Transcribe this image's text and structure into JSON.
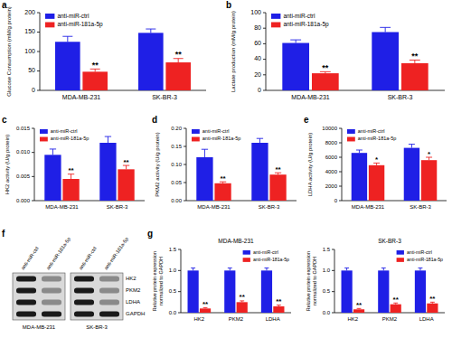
{
  "chart_data": [
    {
      "type": "bar",
      "panel_label": "a",
      "y_label": "Glucose Consumption (mM/g protein)",
      "categories": [
        "MDA-MB-231",
        "SK-BR-3"
      ],
      "series": [
        {
          "name": "anti-miR-ctrl",
          "color": "#1f1fe6",
          "values": [
            125,
            148
          ],
          "errors": [
            14,
            10
          ]
        },
        {
          "name": "anti-miR-181a-5p",
          "color": "#ee2222",
          "values": [
            48,
            72
          ],
          "errors": [
            7,
            10
          ],
          "annotations": [
            "**",
            "**"
          ]
        }
      ],
      "ylim": [
        0,
        200
      ],
      "yticks": [
        0,
        50,
        100,
        150,
        200
      ],
      "legend": "upper left"
    },
    {
      "type": "bar",
      "panel_label": "b",
      "y_label": "Lactate production (mM/g protein)",
      "categories": [
        "MDA-MB-231",
        "SK-BR-3"
      ],
      "series": [
        {
          "name": "anti-miR-ctrl",
          "color": "#1f1fe6",
          "values": [
            61,
            75
          ],
          "errors": [
            4,
            6
          ]
        },
        {
          "name": "anti-miR-181a-5p",
          "color": "#ee2222",
          "values": [
            22,
            35
          ],
          "errors": [
            2,
            4
          ],
          "annotations": [
            "**",
            "**"
          ]
        }
      ],
      "ylim": [
        0,
        100
      ],
      "yticks": [
        0,
        20,
        40,
        60,
        80,
        100
      ],
      "legend": "upper left"
    },
    {
      "type": "bar",
      "panel_label": "c",
      "y_label": "HK2 activity (U/g protein)",
      "categories": [
        "MDA-MB-231",
        "SK-BR-3"
      ],
      "series": [
        {
          "name": "anti-miR-ctrl",
          "color": "#1f1fe6",
          "values": [
            0.0095,
            0.012
          ],
          "errors": [
            0.0012,
            0.0013
          ]
        },
        {
          "name": "anti-miR-181a-5p",
          "color": "#ee2222",
          "values": [
            0.0045,
            0.0065
          ],
          "errors": [
            0.001,
            0.0008
          ],
          "annotations": [
            "**",
            "**"
          ]
        }
      ],
      "ylim": [
        0,
        0.015
      ],
      "yticks": [
        {
          "value": 0,
          "label": "0.000"
        },
        0.005,
        {
          "value": 0.01,
          "label": "0.010"
        },
        0.015
      ],
      "legend": "upper left"
    },
    {
      "type": "bar",
      "panel_label": "d",
      "y_label": "PKM2 activity (U/g protein)",
      "categories": [
        "MDA-MB-231",
        "SK-BR-3"
      ],
      "series": [
        {
          "name": "anti-miR-ctrl",
          "color": "#1f1fe6",
          "values": [
            0.12,
            0.16
          ],
          "errors": [
            0.022,
            0.012
          ]
        },
        {
          "name": "anti-miR-181a-5p",
          "color": "#ee2222",
          "values": [
            0.048,
            0.072
          ],
          "errors": [
            0.004,
            0.005
          ],
          "annotations": [
            "**",
            "**"
          ]
        }
      ],
      "ylim": [
        0,
        0.2
      ],
      "yticks": [
        {
          "value": 0,
          "label": "0.00"
        },
        0.05,
        {
          "value": 0.1,
          "label": "0.10"
        },
        0.15,
        {
          "value": 0.2,
          "label": "0.20"
        }
      ],
      "legend": "upper left"
    },
    {
      "type": "bar",
      "panel_label": "e",
      "y_label": "LDHA activity (U/g protein)",
      "categories": [
        "MDA-MB-231",
        "SK-BR-3"
      ],
      "series": [
        {
          "name": "anti-miR-ctrl",
          "color": "#1f1fe6",
          "values": [
            6600,
            7300
          ],
          "errors": [
            400,
            500
          ]
        },
        {
          "name": "anti-miR-181a-5p",
          "color": "#ee2222",
          "values": [
            4900,
            5600
          ],
          "errors": [
            300,
            400
          ],
          "annotations": [
            "*",
            "*"
          ]
        }
      ],
      "ylim": [
        0,
        10000
      ],
      "yticks": [
        0,
        2000,
        4000,
        6000,
        8000,
        10000
      ],
      "legend": "upper left"
    },
    {
      "type": "bar",
      "panel_label": "g",
      "title": "MDA-MB-231",
      "y_label": [
        "Relative protein expression",
        "normalized to GAPDH"
      ],
      "categories": [
        "HK2",
        "PKM2",
        "LDHA"
      ],
      "series": [
        {
          "name": "anti-miR-ctrl",
          "color": "#1f1fe6",
          "values": [
            1,
            1,
            1
          ],
          "errors": [
            0.06,
            0.06,
            0.06
          ]
        },
        {
          "name": "anti-miR-181a-5p",
          "color": "#ee2222",
          "values": [
            0.1,
            0.25,
            0.15
          ],
          "errors": [
            0.02,
            0.03,
            0.03
          ],
          "annotations": [
            "**",
            "**",
            "**"
          ]
        }
      ],
      "ylim": [
        0,
        1.5
      ],
      "yticks": [
        {
          "value": 0,
          "label": "0.0"
        },
        0.5,
        {
          "value": 1,
          "label": "1.0"
        },
        1.5
      ],
      "legend": "upper right"
    },
    {
      "type": "bar",
      "title": "SK-BR-3",
      "y_label": [
        "Relative protein expression",
        "normalized to GAPDH"
      ],
      "categories": [
        "HK2",
        "PKM2",
        "LDHA"
      ],
      "series": [
        {
          "name": "anti-miR-ctrl",
          "color": "#1f1fe6",
          "values": [
            1,
            1,
            1
          ],
          "errors": [
            0.06,
            0.06,
            0.06
          ]
        },
        {
          "name": "anti-miR-181a-5p",
          "color": "#ee2222",
          "values": [
            0.08,
            0.2,
            0.22
          ],
          "errors": [
            0.02,
            0.03,
            0.03
          ],
          "annotations": [
            "**",
            "**",
            "**"
          ]
        }
      ],
      "ylim": [
        0,
        1.5
      ],
      "yticks": [
        {
          "value": 0,
          "label": "0.0"
        },
        0.5,
        {
          "value": 1,
          "label": "1.0"
        },
        1.5
      ],
      "legend": "upper right"
    }
  ],
  "blot": {
    "panel_label": "f",
    "lanes": [
      "anti-miR-ctrl",
      "anti-miR-181a-5p",
      "anti-miR-ctrl",
      "anti-miR-181a-5p"
    ],
    "proteins": [
      "HK2",
      "PKM2",
      "LDHA",
      "GAPDH"
    ],
    "cell_lines": [
      "MDA-MB-231",
      "SK-BR-3"
    ]
  }
}
